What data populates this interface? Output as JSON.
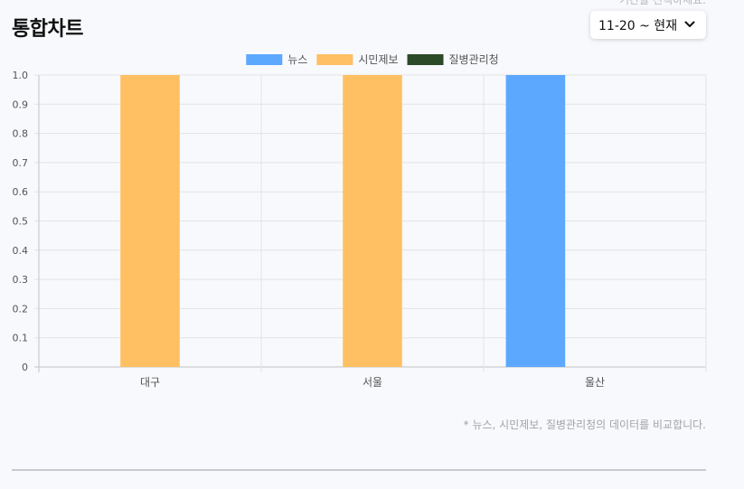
{
  "header": {
    "title": "통합차트",
    "period_hint": "기간을 선택하세요.",
    "period_value": "11-20 ~ 현재"
  },
  "footnote": "* 뉴스, 시민제보, 질병관리청의 데이터를 비교합니다.",
  "chart_data": {
    "type": "bar",
    "categories": [
      "대구",
      "서울",
      "울산"
    ],
    "series": [
      {
        "name": "뉴스",
        "color": "#5ca8ff",
        "values": [
          0,
          0,
          1
        ]
      },
      {
        "name": "시민제보",
        "color": "#ffc063",
        "values": [
          1,
          1,
          0
        ]
      },
      {
        "name": "질병관리청",
        "color": "#2c4a28",
        "values": [
          0,
          0,
          0
        ]
      }
    ],
    "ylim": [
      0,
      1
    ],
    "yticks": [
      "0",
      "0.1",
      "0.2",
      "0.3",
      "0.4",
      "0.5",
      "0.6",
      "0.7",
      "0.8",
      "0.9",
      "1.0"
    ],
    "grid": true,
    "legend": "top-center"
  }
}
